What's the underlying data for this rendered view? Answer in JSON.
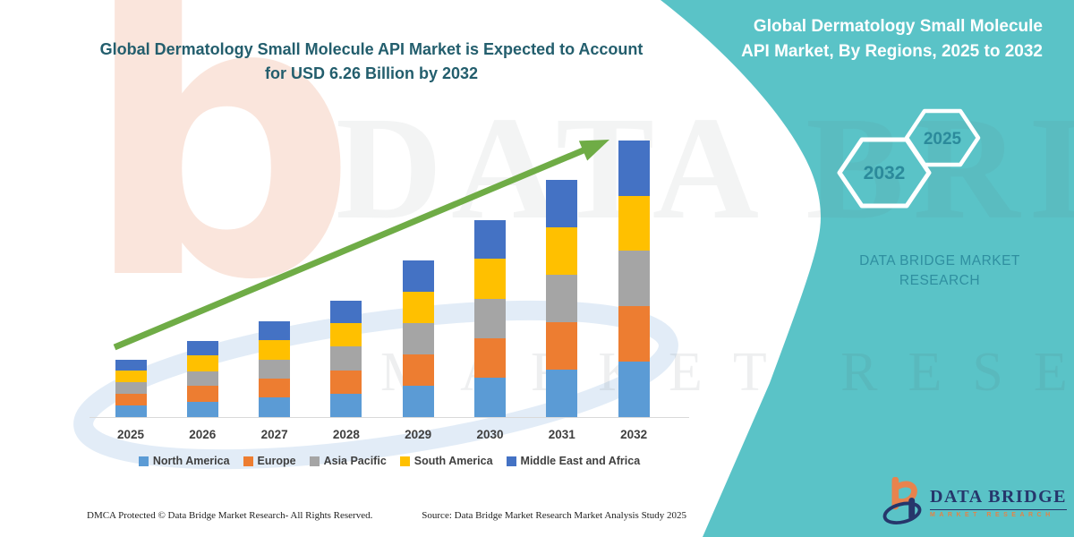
{
  "banner": {
    "left_title": "Global Dermatology Small Molecule API Market is Expected to Account for USD 6.26 Billion by 2032",
    "right_title": "Global Dermatology Small Molecule API Market, By Regions, 2025 to 2032",
    "hexagons": {
      "back_year": "2032",
      "front_year": "2025"
    },
    "brand_text_line1": "DATA BRIDGE MARKET",
    "brand_text_line2": "RESEARCH",
    "watermark_text": "DATA BRIDGE",
    "watermark_subtext": "MARKET RESEARCH",
    "watermark_letter": "b",
    "colors": {
      "teal_background": "#5AC3C7",
      "left_title_text": "#235E6D",
      "trend_arrow_green": "#6FAC46",
      "hexagon_year_text": "#2B8A9B",
      "brand_text_teal": "#2F8FA0",
      "logo_navy": "#26366B",
      "logo_orange": "#E8834D"
    }
  },
  "chart_data": {
    "type": "bar",
    "stacked": true,
    "unit": "USD Billion",
    "categories": [
      "2025",
      "2026",
      "2027",
      "2028",
      "2029",
      "2030",
      "2031",
      "2032"
    ],
    "series": [
      {
        "name": "North America",
        "color": "#5B9BD5",
        "values": [
          0.27,
          0.35,
          0.44,
          0.53,
          0.72,
          0.9,
          1.08,
          1.26
        ]
      },
      {
        "name": "Europe",
        "color": "#ED7D31",
        "values": [
          0.26,
          0.35,
          0.43,
          0.53,
          0.71,
          0.89,
          1.07,
          1.25
        ]
      },
      {
        "name": "Asia Pacific",
        "color": "#A5A5A5",
        "values": [
          0.26,
          0.34,
          0.43,
          0.53,
          0.71,
          0.89,
          1.07,
          1.25
        ]
      },
      {
        "name": "South America",
        "color": "#FFC000",
        "values": [
          0.26,
          0.35,
          0.44,
          0.53,
          0.71,
          0.9,
          1.08,
          1.25
        ]
      },
      {
        "name": "Middle East and Africa",
        "color": "#4472C4",
        "values": [
          0.26,
          0.34,
          0.43,
          0.52,
          0.71,
          0.89,
          1.07,
          1.25
        ]
      }
    ],
    "totals": [
      1.31,
      1.73,
      2.17,
      2.64,
      3.56,
      4.47,
      5.37,
      6.26
    ],
    "ylim": [
      0,
      6.5
    ],
    "grid": false,
    "y_axis_visible": false,
    "legend_position": "bottom",
    "annotations": [
      "green upward trend arrow from 2025 to 2032"
    ]
  },
  "footer": {
    "dmca": "DMCA Protected © Data Bridge Market Research-  All Rights Reserved.",
    "source": "Source: Data Bridge Market Research  Market Analysis Study 2025"
  },
  "logo": {
    "wordmark": "DATA BRIDGE",
    "subtext": "MARKET RESEARCH"
  }
}
